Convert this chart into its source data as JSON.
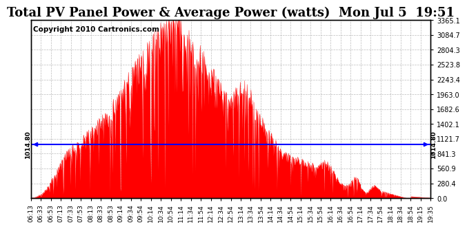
{
  "title": "Total PV Panel Power & Average Power (watts)  Mon Jul 5  19:51",
  "copyright": "Copyright 2010 Cartronics.com",
  "avg_power": 1014.8,
  "y_max": 3365.1,
  "y_min": 0.0,
  "yticks": [
    0.0,
    280.4,
    560.9,
    841.3,
    1121.7,
    1402.1,
    1682.6,
    1963.0,
    2243.4,
    2523.8,
    2804.3,
    3084.7,
    3365.1
  ],
  "avg_label": "1014.80",
  "fill_color": "#FF0000",
  "line_color": "#FF0000",
  "avg_line_color": "#0000FF",
  "background_color": "#FFFFFF",
  "grid_color": "#AAAAAA",
  "title_fontsize": 13,
  "copyright_fontsize": 7.5,
  "tick_fontsize": 7,
  "x_labels": [
    "06:13",
    "06:33",
    "06:53",
    "07:13",
    "07:33",
    "07:53",
    "08:13",
    "08:33",
    "08:53",
    "09:14",
    "09:34",
    "09:54",
    "10:14",
    "10:34",
    "10:54",
    "11:14",
    "11:34",
    "11:54",
    "12:14",
    "12:34",
    "12:54",
    "13:14",
    "13:34",
    "13:54",
    "14:14",
    "14:34",
    "14:54",
    "15:14",
    "15:34",
    "15:54",
    "16:14",
    "16:34",
    "16:54",
    "17:14",
    "17:34",
    "17:54",
    "18:14",
    "18:34",
    "18:54",
    "19:15",
    "19:35"
  ],
  "seed": 42,
  "n_points": 820
}
